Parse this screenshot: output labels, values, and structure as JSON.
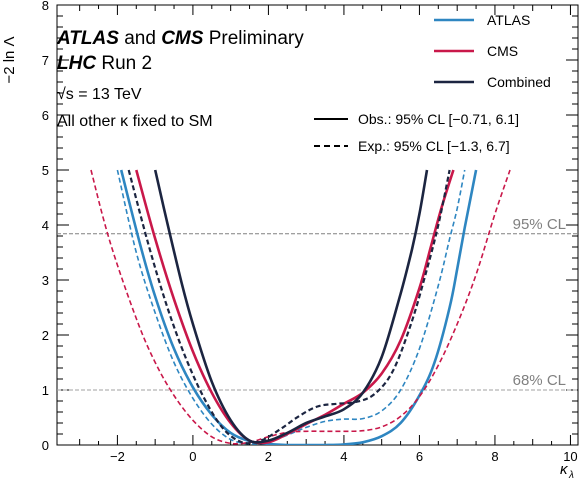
{
  "chart_data": {
    "type": "line",
    "xlabel": "κ",
    "xlabel_sub": "λ",
    "ylabel": "−2 ln Λ",
    "xlim": [
      -3.6,
      10.2
    ],
    "ylim": [
      0,
      8
    ],
    "xticks": [
      -2,
      0,
      2,
      4,
      6,
      8,
      10
    ],
    "yticks": [
      0,
      1,
      2,
      3,
      4,
      5,
      6,
      7,
      8
    ],
    "annotations": {
      "line1_bold": "ATLAS",
      "line1_mid": "and",
      "line1_bold2": "CMS",
      "line1_rest": "Preliminary",
      "line2_bold": "LHC",
      "line2_rest": "Run 2",
      "line3": "√s = 13 TeV",
      "line4": "All other κ fixed to SM"
    },
    "cl_lines": [
      {
        "label": "95% CL",
        "y": 3.84,
        "color": "#808080"
      },
      {
        "label": "68% CL",
        "y": 1.0,
        "color": "#a0a0a0"
      }
    ],
    "legend": {
      "placement": "top-right",
      "entries": [
        {
          "label": "ATLAS",
          "color": "#2e86c1"
        },
        {
          "label": "CMS",
          "color": "#c9184a"
        },
        {
          "label": "Combined",
          "color": "#1c2541"
        }
      ],
      "styles": [
        {
          "label": "Obs.: 95% CL [−0.71, 6.1]",
          "dash": false
        },
        {
          "label": "Exp.:  95% CL [−1.3, 6.7]",
          "dash": true
        }
      ]
    },
    "series": [
      {
        "name": "ATLAS",
        "style": "observed",
        "color": "#2e86c1",
        "x": [
          -1.9,
          -1.4,
          -1.0,
          -0.5,
          0,
          0.5,
          1.0,
          1.5,
          2.0,
          2.5,
          3.0,
          3.5,
          4.0,
          4.5,
          5.0,
          5.5,
          6.0,
          6.4,
          6.8,
          7.0,
          7.2,
          7.4,
          7.5
        ],
        "y": [
          5.0,
          3.65,
          2.7,
          1.75,
          1.05,
          0.55,
          0.22,
          0.07,
          0.02,
          0.0,
          0.0,
          0.0,
          0.01,
          0.05,
          0.16,
          0.4,
          0.9,
          1.5,
          2.5,
          3.2,
          3.95,
          4.65,
          5.0
        ]
      },
      {
        "name": "ATLAS",
        "style": "expected",
        "color": "#2e86c1",
        "x": [
          -2.0,
          -1.5,
          -1.0,
          -0.5,
          0,
          0.5,
          1.0,
          1.5,
          2.0,
          2.5,
          3.0,
          3.5,
          4.0,
          4.5,
          5.0,
          5.5,
          6.0,
          6.5,
          6.8,
          7.0,
          7.2
        ],
        "y": [
          5.0,
          3.5,
          2.4,
          1.5,
          0.85,
          0.38,
          0.1,
          0.02,
          0.05,
          0.18,
          0.32,
          0.43,
          0.47,
          0.48,
          0.62,
          1.0,
          1.75,
          2.9,
          3.75,
          4.3,
          5.0
        ]
      },
      {
        "name": "CMS",
        "style": "observed",
        "color": "#c9184a",
        "x": [
          -1.5,
          -1.0,
          -0.5,
          0,
          0.5,
          1.0,
          1.5,
          2.0,
          2.5,
          3.0,
          3.5,
          4.0,
          4.5,
          5.0,
          5.5,
          6.0,
          6.3,
          6.6,
          6.9
        ],
        "y": [
          5.0,
          3.75,
          2.65,
          1.7,
          0.95,
          0.4,
          0.08,
          0.05,
          0.2,
          0.38,
          0.55,
          0.75,
          0.95,
          1.3,
          1.9,
          2.85,
          3.6,
          4.35,
          5.0
        ]
      },
      {
        "name": "CMS",
        "style": "expected",
        "color": "#c9184a",
        "x": [
          -2.7,
          -2.2,
          -1.5,
          -1.0,
          -0.5,
          0,
          0.5,
          1.0,
          1.5,
          2.0,
          2.5,
          3.0,
          3.5,
          4.0,
          4.5,
          5.0,
          5.5,
          6.0,
          6.5,
          7.0,
          7.5,
          8.0,
          8.4
        ],
        "y": [
          5.0,
          3.7,
          2.3,
          1.5,
          0.9,
          0.45,
          0.15,
          0.03,
          0.05,
          0.15,
          0.23,
          0.25,
          0.25,
          0.25,
          0.26,
          0.33,
          0.52,
          0.88,
          1.45,
          2.2,
          3.1,
          4.2,
          5.0
        ]
      },
      {
        "name": "Combined",
        "style": "observed",
        "color": "#1c2541",
        "x": [
          -1.0,
          -0.7,
          -0.3,
          0,
          0.5,
          1.0,
          1.5,
          2.0,
          2.5,
          3.0,
          3.5,
          4.0,
          4.5,
          5.0,
          5.5,
          5.8,
          6.0,
          6.2
        ],
        "y": [
          5.0,
          4.1,
          2.95,
          2.2,
          1.15,
          0.45,
          0.08,
          0.08,
          0.22,
          0.4,
          0.52,
          0.65,
          0.95,
          1.6,
          2.75,
          3.55,
          4.2,
          5.0
        ]
      },
      {
        "name": "Combined",
        "style": "expected",
        "color": "#1c2541",
        "x": [
          -1.7,
          -1.2,
          -0.7,
          -0.2,
          0.3,
          0.8,
          1.3,
          1.8,
          2.3,
          2.8,
          3.3,
          3.8,
          4.3,
          4.8,
          5.3,
          5.8,
          6.2,
          6.5,
          6.8
        ],
        "y": [
          5.0,
          3.7,
          2.55,
          1.6,
          0.85,
          0.3,
          0.05,
          0.08,
          0.28,
          0.52,
          0.7,
          0.75,
          0.78,
          0.92,
          1.35,
          2.25,
          3.2,
          4.0,
          5.0
        ]
      }
    ]
  }
}
